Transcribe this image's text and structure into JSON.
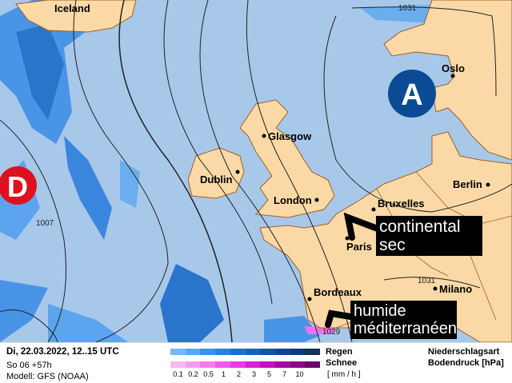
{
  "map": {
    "colors": {
      "sea": "#a8c8ea",
      "land": "#fad9a6",
      "border": "#a0601e",
      "rain_light": "#6aaef0",
      "rain_mid": "#2f7fdc",
      "snow": "#f070f0"
    },
    "cities": [
      {
        "name": "Iceland"
      },
      {
        "name": "Oslo"
      },
      {
        "name": "Glasgow"
      },
      {
        "name": "Dublin"
      },
      {
        "name": "London"
      },
      {
        "name": "Bruxelles"
      },
      {
        "name": "Berlin"
      },
      {
        "name": "Paris"
      },
      {
        "name": "Bordeaux"
      },
      {
        "name": "Milano"
      }
    ],
    "isobar_labels": [
      "1031",
      "1007",
      "1031",
      "1029"
    ],
    "high_pressure": {
      "label": "A",
      "color": "#0a4b96"
    },
    "low_pressure": {
      "label": "D",
      "color": "#e0101e"
    },
    "annotations": {
      "continental": [
        "continental",
        "sec"
      ],
      "mediterranean": [
        "humide",
        "méditerranéen"
      ]
    }
  },
  "legend": {
    "date": "Di, 22.03.2022, 12..15 UTC",
    "run": "So 06 +57h",
    "model": "Modell: GFS (NOAA)",
    "rain_label": "Regen",
    "snow_label": "Schnee",
    "unit": "[ mm / h ]",
    "type_label": "Niederschlagsart",
    "pressure_label": "Bodendruck [hPa]",
    "ticks": [
      "0.1",
      "0.2",
      "0.5",
      "1",
      "2",
      "3",
      "5",
      "7",
      "10"
    ],
    "rain_colors": [
      "#78b8f5",
      "#5aa6f0",
      "#3a92e6",
      "#2a80dc",
      "#1f6ecc",
      "#1860b8",
      "#1352a4",
      "#0f4590",
      "#0d3a78",
      "#163356"
    ],
    "snow_colors": [
      "#f8b8f4",
      "#f69cf0",
      "#f47cee",
      "#f058ea",
      "#ec38e6",
      "#dc20d8",
      "#c410c0",
      "#a808a4",
      "#8a0888",
      "#6a066a"
    ]
  }
}
